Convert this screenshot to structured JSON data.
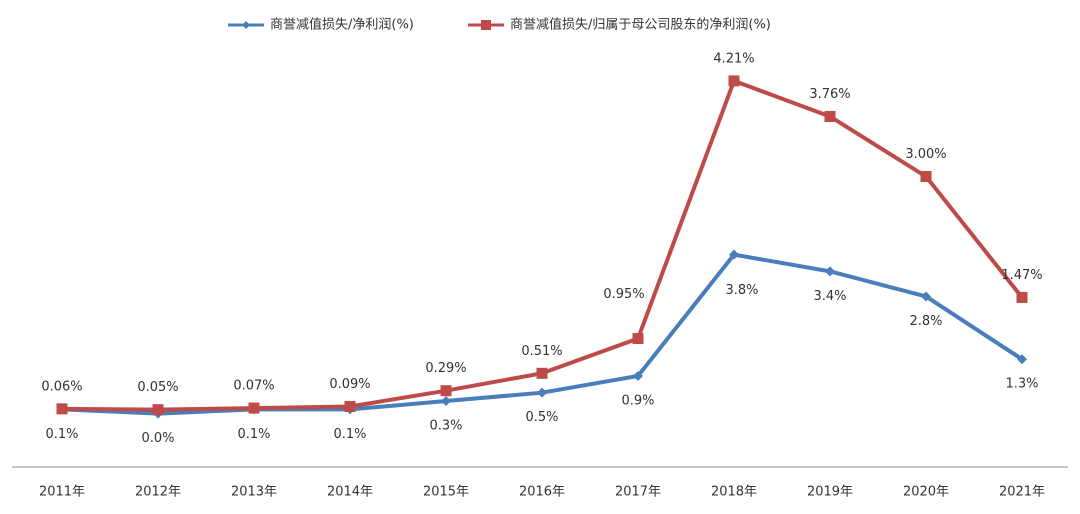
{
  "chart_data": {
    "type": "line",
    "categories": [
      "2011年",
      "2012年",
      "2013年",
      "2014年",
      "2015年",
      "2016年",
      "2017年",
      "2018年",
      "2019年",
      "2020年",
      "2021年"
    ],
    "series": [
      {
        "name": "商誉减值损失/净利润(%)",
        "color": "#4a7ebb",
        "axis": "y2",
        "values": [
          0.1,
          0.0,
          0.1,
          0.1,
          0.3,
          0.5,
          0.9,
          3.8,
          3.4,
          2.8,
          1.3
        ],
        "value_labels": [
          "0.1%",
          "0.0%",
          "0.1%",
          "0.1%",
          "0.3%",
          "0.5%",
          "0.9%",
          "3.8%",
          "3.4%",
          "2.8%",
          "1.3%"
        ]
      },
      {
        "name": "商誉减值损失/归属于母公司股东的净利润(%)",
        "color": "#be4b48",
        "values": [
          0.06,
          0.05,
          0.07,
          0.09,
          0.29,
          0.51,
          0.95,
          4.21,
          3.76,
          3.0,
          1.47
        ],
        "value_labels": [
          "0.06%",
          "0.05%",
          "0.07%",
          "0.09%",
          "0.29%",
          "0.51%",
          "0.95%",
          "4.21%",
          "3.76%",
          "3.00%",
          "1.47%"
        ]
      }
    ],
    "ylim": [
      0,
      4.5
    ],
    "y2lim": [
      0,
      8.5
    ],
    "legend": "top"
  }
}
